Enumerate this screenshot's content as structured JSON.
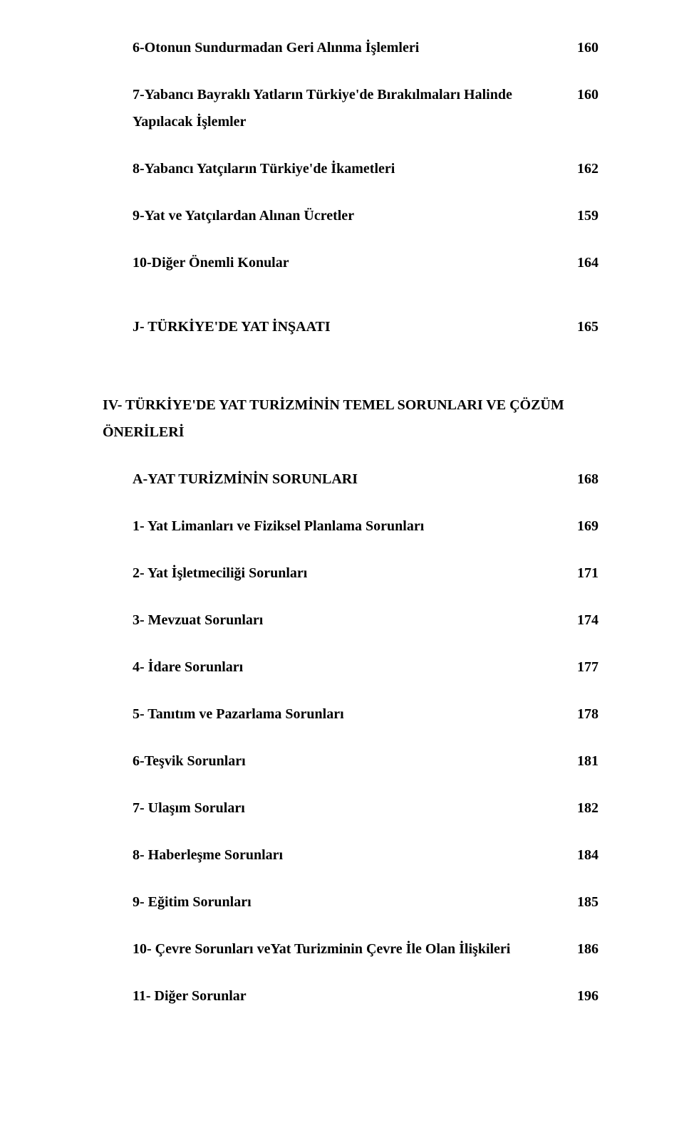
{
  "entries": {
    "e1": {
      "label": "6-Otonun Sundurmadan Geri Alınma İşlemleri",
      "page": "160"
    },
    "e2": {
      "label": "7-Yabancı Bayraklı Yatların Türkiye'de Bırakılmaları Halinde Yapılacak İşlemler",
      "page": "160"
    },
    "e3": {
      "label": "8-Yabancı Yatçıların Türkiye'de İkametleri",
      "page": "162"
    },
    "e4": {
      "label": "9-Yat ve Yatçılardan Alınan Ücretler",
      "page": "159"
    },
    "e5": {
      "label": "10-Diğer Önemli Konular",
      "page": "164"
    },
    "e6": {
      "label": "J- TÜRKİYE'DE YAT İNŞAATI",
      "page": "165"
    },
    "e7": {
      "label": "IV-   TÜRKİYE'DE   YAT   TURİZMİNİN   TEMEL   SORUNLARI   VE ÇÖZÜM ÖNERİLERİ"
    },
    "e8": {
      "label": "A-YAT TURİZMİNİN SORUNLARI",
      "page": "168"
    },
    "e9": {
      "label": "1- Yat Limanları ve Fiziksel Planlama Sorunları",
      "page": "169"
    },
    "e10": {
      "label": "2- Yat İşletmeciliği Sorunları",
      "page": "171"
    },
    "e11": {
      "label": "3- Mevzuat Sorunları",
      "page": "174"
    },
    "e12": {
      "label": "4- İdare Sorunları",
      "page": "177"
    },
    "e13": {
      "label": "5- Tanıtım ve Pazarlama Sorunları",
      "page": "178"
    },
    "e14": {
      "label": "6-Teşvik Sorunları",
      "page": "181"
    },
    "e15": {
      "label": "7- Ulaşım Soruları",
      "page": "182"
    },
    "e16": {
      "label": "8- Haberleşme Sorunları",
      "page": "184"
    },
    "e17": {
      "label": "9- Eğitim Sorunları",
      "page": "185"
    },
    "e18": {
      "label": "10- Çevre Sorunları veYat Turizminin Çevre İle Olan İlişkileri",
      "page": "186"
    },
    "e19": {
      "label": "11- Diğer Sorunlar",
      "page": "196"
    }
  },
  "colors": {
    "text": "#000000",
    "background": "#ffffff"
  },
  "typography": {
    "font_family": "Times New Roman",
    "font_size_pt": 15,
    "font_weight": "bold",
    "line_height": 1.9
  }
}
